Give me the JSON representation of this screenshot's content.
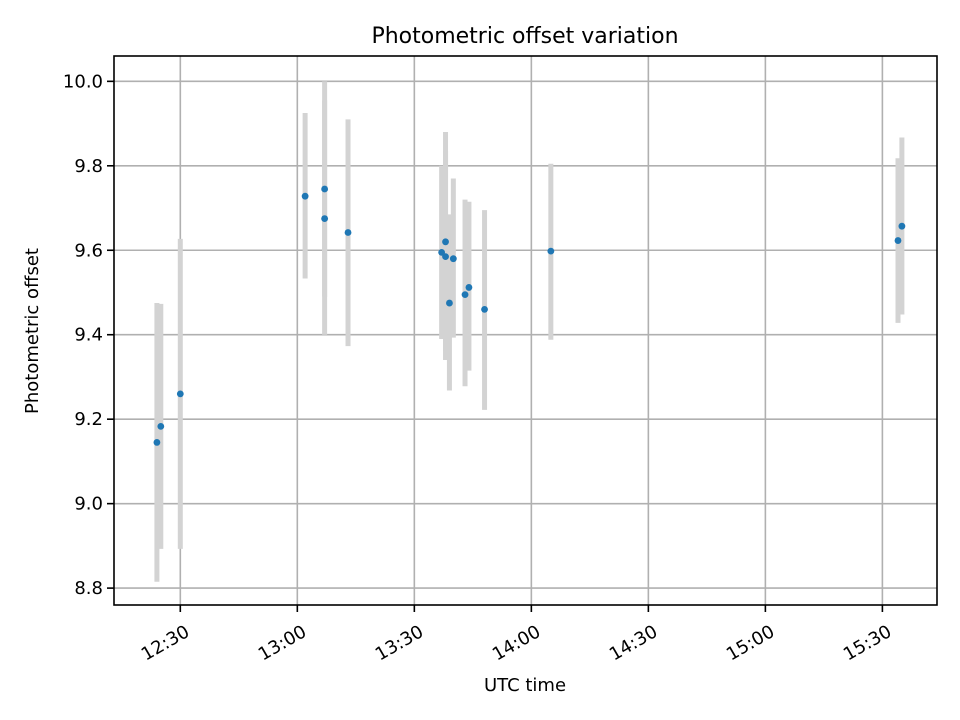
{
  "chart_data": {
    "type": "scatter",
    "title": "Photometric offset variation",
    "xlabel": "UTC time",
    "ylabel": "Photometric offset",
    "xlim": [
      "12:13",
      "15:44"
    ],
    "ylim": [
      8.76,
      10.06
    ],
    "yticks": [
      8.8,
      9.0,
      9.2,
      9.4,
      9.6,
      9.8,
      10.0
    ],
    "ytick_labels": [
      "8.8",
      "9.0",
      "9.2",
      "9.4",
      "9.6",
      "9.8",
      "10.0"
    ],
    "xticks": [
      "12:30",
      "13:00",
      "13:30",
      "14:00",
      "14:30",
      "15:00",
      "15:30"
    ],
    "xtick_labels": [
      "12:30",
      "13:00",
      "13:30",
      "14:00",
      "14:30",
      "15:00",
      "15:30"
    ],
    "grid": true,
    "point_color": "#1f77b4",
    "errorbar_color": "#d3d3d3",
    "points": [
      {
        "x": "12:24",
        "y": 9.145,
        "ylo": 8.815,
        "yhi": 9.475
      },
      {
        "x": "12:25",
        "y": 9.183,
        "ylo": 8.893,
        "yhi": 9.473
      },
      {
        "x": "12:30",
        "y": 9.26,
        "ylo": 8.893,
        "yhi": 9.627
      },
      {
        "x": "13:02",
        "y": 9.728,
        "ylo": 9.533,
        "yhi": 9.925
      },
      {
        "x": "13:07",
        "y": 9.745,
        "ylo": 9.49,
        "yhi": 10.0
      },
      {
        "x": "13:07",
        "y": 9.675,
        "ylo": 9.4,
        "yhi": 9.955
      },
      {
        "x": "13:13",
        "y": 9.642,
        "ylo": 9.373,
        "yhi": 9.91
      },
      {
        "x": "13:37",
        "y": 9.595,
        "ylo": 9.39,
        "yhi": 9.8
      },
      {
        "x": "13:38",
        "y": 9.62,
        "ylo": 9.36,
        "yhi": 9.88
      },
      {
        "x": "13:38",
        "y": 9.585,
        "ylo": 9.34,
        "yhi": 9.835
      },
      {
        "x": "13:39",
        "y": 9.475,
        "ylo": 9.268,
        "yhi": 9.685
      },
      {
        "x": "13:40",
        "y": 9.58,
        "ylo": 9.393,
        "yhi": 9.77
      },
      {
        "x": "13:43",
        "y": 9.495,
        "ylo": 9.278,
        "yhi": 9.72
      },
      {
        "x": "13:44",
        "y": 9.512,
        "ylo": 9.315,
        "yhi": 9.715
      },
      {
        "x": "13:48",
        "y": 9.46,
        "ylo": 9.222,
        "yhi": 9.695
      },
      {
        "x": "14:05",
        "y": 9.598,
        "ylo": 9.388,
        "yhi": 9.805
      },
      {
        "x": "15:34",
        "y": 9.623,
        "ylo": 9.428,
        "yhi": 9.818
      },
      {
        "x": "15:35",
        "y": 9.657,
        "ylo": 9.448,
        "yhi": 9.867
      }
    ]
  }
}
